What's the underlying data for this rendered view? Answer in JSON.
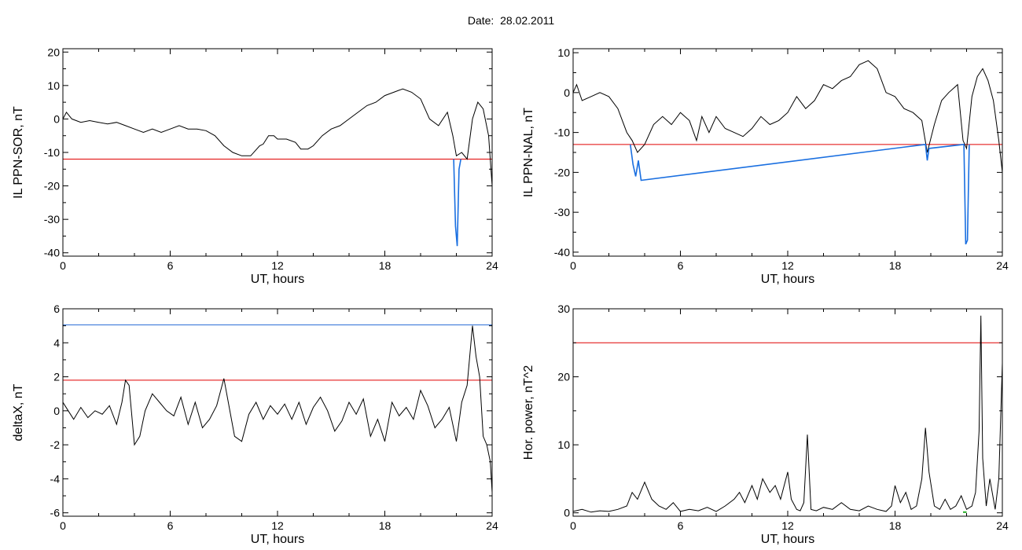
{
  "header": {
    "date_label": "Date:",
    "date_value": "28.02.2011"
  },
  "chart_data": [
    {
      "type": "line",
      "xlabel": "UT, hours",
      "ylabel": "IL PPN-SOR, nT",
      "xlim": [
        0,
        24
      ],
      "ylim": [
        -41,
        21
      ],
      "xticks": [
        0,
        6,
        12,
        18,
        24
      ],
      "yticks": [
        -40,
        -30,
        -20,
        -10,
        0,
        10,
        20
      ],
      "thresholds": [
        {
          "value": -12,
          "color": "#e00000"
        }
      ],
      "series": [
        {
          "color": "#000000",
          "x": [
            0,
            0.2,
            0.5,
            1,
            1.5,
            2,
            2.5,
            3,
            3.5,
            4,
            4.5,
            5,
            5.5,
            6,
            6.5,
            7,
            7.5,
            8,
            8.5,
            9,
            9.5,
            10,
            10.5,
            11,
            11.2,
            11.5,
            11.8,
            12,
            12.5,
            13,
            13.3,
            13.7,
            14,
            14.5,
            15,
            15.5,
            16,
            16.5,
            17,
            17.5,
            18,
            18.5,
            19,
            19.5,
            20,
            20.5,
            21,
            21.5,
            21.8,
            22,
            22.3,
            22.6,
            22.9,
            23.2,
            23.5,
            23.8,
            24
          ],
          "y": [
            0,
            2,
            0,
            -1,
            -0.5,
            -1,
            -1.5,
            -1,
            -2,
            -3,
            -4,
            -3,
            -4,
            -3,
            -2,
            -3,
            -3,
            -3.5,
            -5,
            -8,
            -10,
            -11,
            -11,
            -8,
            -7.5,
            -5,
            -5,
            -6,
            -6,
            -7,
            -9,
            -9,
            -8,
            -5,
            -3,
            -2,
            0,
            2,
            4,
            5,
            7,
            8,
            9,
            8,
            6,
            0,
            -2,
            2,
            -5,
            -11,
            -10,
            -12,
            0,
            5,
            3,
            -5,
            -20
          ]
        },
        {
          "color": "#1a6fe0",
          "x": [
            21.85,
            21.95,
            22.05,
            22.15,
            22.25
          ],
          "y": [
            -12,
            -32,
            -38,
            -15,
            -12
          ]
        }
      ]
    },
    {
      "type": "line",
      "xlabel": "UT, hours",
      "ylabel": "IL PPN-NAL, nT",
      "xlim": [
        0,
        24
      ],
      "ylim": [
        -41,
        11
      ],
      "xticks": [
        0,
        6,
        12,
        18,
        24
      ],
      "yticks": [
        -40,
        -30,
        -20,
        -10,
        0,
        10
      ],
      "thresholds": [
        {
          "value": -13,
          "color": "#e00000"
        }
      ],
      "series": [
        {
          "color": "#000000",
          "x": [
            0,
            0.2,
            0.5,
            1,
            1.5,
            2,
            2.5,
            3,
            3.3,
            3.6,
            4,
            4.5,
            5,
            5.5,
            6,
            6.5,
            6.9,
            7.2,
            7.6,
            8,
            8.5,
            9,
            9.5,
            10,
            10.5,
            11,
            11.5,
            12,
            12.5,
            13,
            13.5,
            14,
            14.5,
            15,
            15.5,
            16,
            16.5,
            17,
            17.5,
            18,
            18.5,
            19,
            19.5,
            19.8,
            20.2,
            20.6,
            21,
            21.5,
            21.8,
            22,
            22.3,
            22.6,
            22.9,
            23.2,
            23.5,
            23.8,
            24
          ],
          "y": [
            0,
            2,
            -2,
            -1,
            0,
            -1,
            -4,
            -10,
            -12,
            -15,
            -13,
            -8,
            -6,
            -8,
            -5,
            -7,
            -12,
            -6,
            -10,
            -6,
            -9,
            -10,
            -11,
            -9,
            -6,
            -8,
            -7,
            -5,
            -1,
            -4,
            -2,
            2,
            1,
            3,
            4,
            7,
            8,
            6,
            0,
            -1,
            -4,
            -5,
            -7,
            -15,
            -8,
            -2,
            0,
            2,
            -12,
            -14,
            -1,
            4,
            6,
            3,
            -2,
            -12,
            -20
          ]
        },
        {
          "color": "#1a6fe0",
          "x": [
            3.2,
            3.35,
            3.5,
            3.65,
            3.8,
            19.7,
            19.8,
            19.9,
            21.85,
            21.95,
            22.05,
            22.15
          ],
          "y": [
            -13,
            -18,
            -21,
            -17,
            -22,
            -13,
            -17,
            -14,
            -13,
            -38,
            -37,
            -13
          ]
        }
      ]
    },
    {
      "type": "line",
      "xlabel": "UT, hours",
      "ylabel": "deltaX, nT",
      "xlim": [
        0,
        24
      ],
      "ylim": [
        -6.2,
        6
      ],
      "xticks": [
        0,
        6,
        12,
        18,
        24
      ],
      "yticks": [
        -6,
        -4,
        -2,
        0,
        2,
        4,
        6
      ],
      "thresholds": [
        {
          "value": 5.05,
          "color": "#2c6fd6"
        },
        {
          "value": 1.8,
          "color": "#e00000"
        }
      ],
      "series": [
        {
          "color": "#000000",
          "x": [
            0,
            0.3,
            0.6,
            1,
            1.4,
            1.8,
            2.2,
            2.6,
            3,
            3.3,
            3.5,
            3.7,
            4,
            4.3,
            4.6,
            5,
            5.4,
            5.8,
            6.2,
            6.6,
            7,
            7.4,
            7.8,
            8.2,
            8.6,
            9,
            9.3,
            9.6,
            10,
            10.4,
            10.8,
            11.2,
            11.6,
            12,
            12.4,
            12.8,
            13.2,
            13.6,
            14,
            14.4,
            14.8,
            15.2,
            15.6,
            16,
            16.4,
            16.8,
            17.2,
            17.6,
            18,
            18.4,
            18.8,
            19.2,
            19.6,
            20,
            20.4,
            20.8,
            21.2,
            21.6,
            22,
            22.3,
            22.6,
            22.9,
            23.1,
            23.3,
            23.5,
            23.7,
            23.9,
            24
          ],
          "y": [
            0.5,
            0,
            -0.5,
            0.2,
            -0.4,
            0,
            -0.2,
            0.3,
            -0.8,
            0.5,
            1.8,
            1.5,
            -2,
            -1.5,
            0,
            1,
            0.5,
            0,
            -0.3,
            0.8,
            -0.8,
            0.5,
            -1,
            -0.5,
            0.3,
            1.9,
            0.2,
            -1.5,
            -1.8,
            -0.2,
            0.5,
            -0.5,
            0.3,
            -0.2,
            0.4,
            -0.5,
            0.5,
            -0.8,
            0.2,
            0.8,
            0,
            -1.2,
            -0.6,
            0.5,
            -0.2,
            0.7,
            -1.5,
            -0.5,
            -1.8,
            0.5,
            -0.3,
            0.2,
            -0.5,
            1.2,
            0.3,
            -1,
            -0.5,
            0.2,
            -1.8,
            0.5,
            1.5,
            5,
            3.2,
            2,
            -1.5,
            -2,
            -3,
            -4.8
          ]
        }
      ]
    },
    {
      "type": "line",
      "xlabel": "UT, hours",
      "ylabel": "Hor. power, nT^2",
      "xlim": [
        0,
        24
      ],
      "ylim": [
        -0.5,
        30
      ],
      "xticks": [
        0,
        6,
        12,
        18,
        24
      ],
      "yticks": [
        0,
        10,
        20,
        30
      ],
      "thresholds": [
        {
          "value": 25,
          "color": "#e00000"
        }
      ],
      "series": [
        {
          "color": "#000000",
          "x": [
            0,
            0.5,
            1,
            1.5,
            2,
            2.5,
            3,
            3.3,
            3.6,
            4,
            4.4,
            4.8,
            5.2,
            5.6,
            6,
            6.5,
            7,
            7.5,
            8,
            8.5,
            9,
            9.3,
            9.6,
            10,
            10.3,
            10.6,
            11,
            11.3,
            11.6,
            12,
            12.2,
            12.5,
            12.7,
            12.9,
            13.1,
            13.3,
            13.6,
            14,
            14.5,
            15,
            15.5,
            16,
            16.5,
            17,
            17.5,
            17.8,
            18,
            18.3,
            18.6,
            18.9,
            19.2,
            19.5,
            19.7,
            19.9,
            20.2,
            20.5,
            20.8,
            21.1,
            21.4,
            21.7,
            22,
            22.3,
            22.5,
            22.7,
            22.8,
            22.9,
            23.1,
            23.3,
            23.6,
            23.8,
            24
          ],
          "y": [
            0.2,
            0.5,
            0.1,
            0.3,
            0.2,
            0.5,
            1,
            3,
            2,
            4.5,
            2,
            1,
            0.5,
            1.5,
            0.2,
            0.5,
            0.3,
            0.8,
            0.2,
            1,
            2,
            3,
            1.5,
            4,
            2,
            5,
            3,
            4,
            2,
            6,
            2,
            0.5,
            0.3,
            1.5,
            11.5,
            0.5,
            0.3,
            0.8,
            0.5,
            1.5,
            0.5,
            0.3,
            1,
            0.5,
            0.2,
            1,
            4,
            1.5,
            3,
            0.5,
            1,
            5,
            12.5,
            6,
            1,
            0.5,
            2,
            0.5,
            1,
            2.5,
            0.5,
            1,
            3,
            12,
            29,
            8,
            1,
            5,
            0.5,
            5,
            22
          ]
        },
        {
          "color": "#00a000",
          "x": [
            21.8,
            22
          ],
          "y": [
            0.1,
            0.1
          ]
        }
      ]
    }
  ]
}
